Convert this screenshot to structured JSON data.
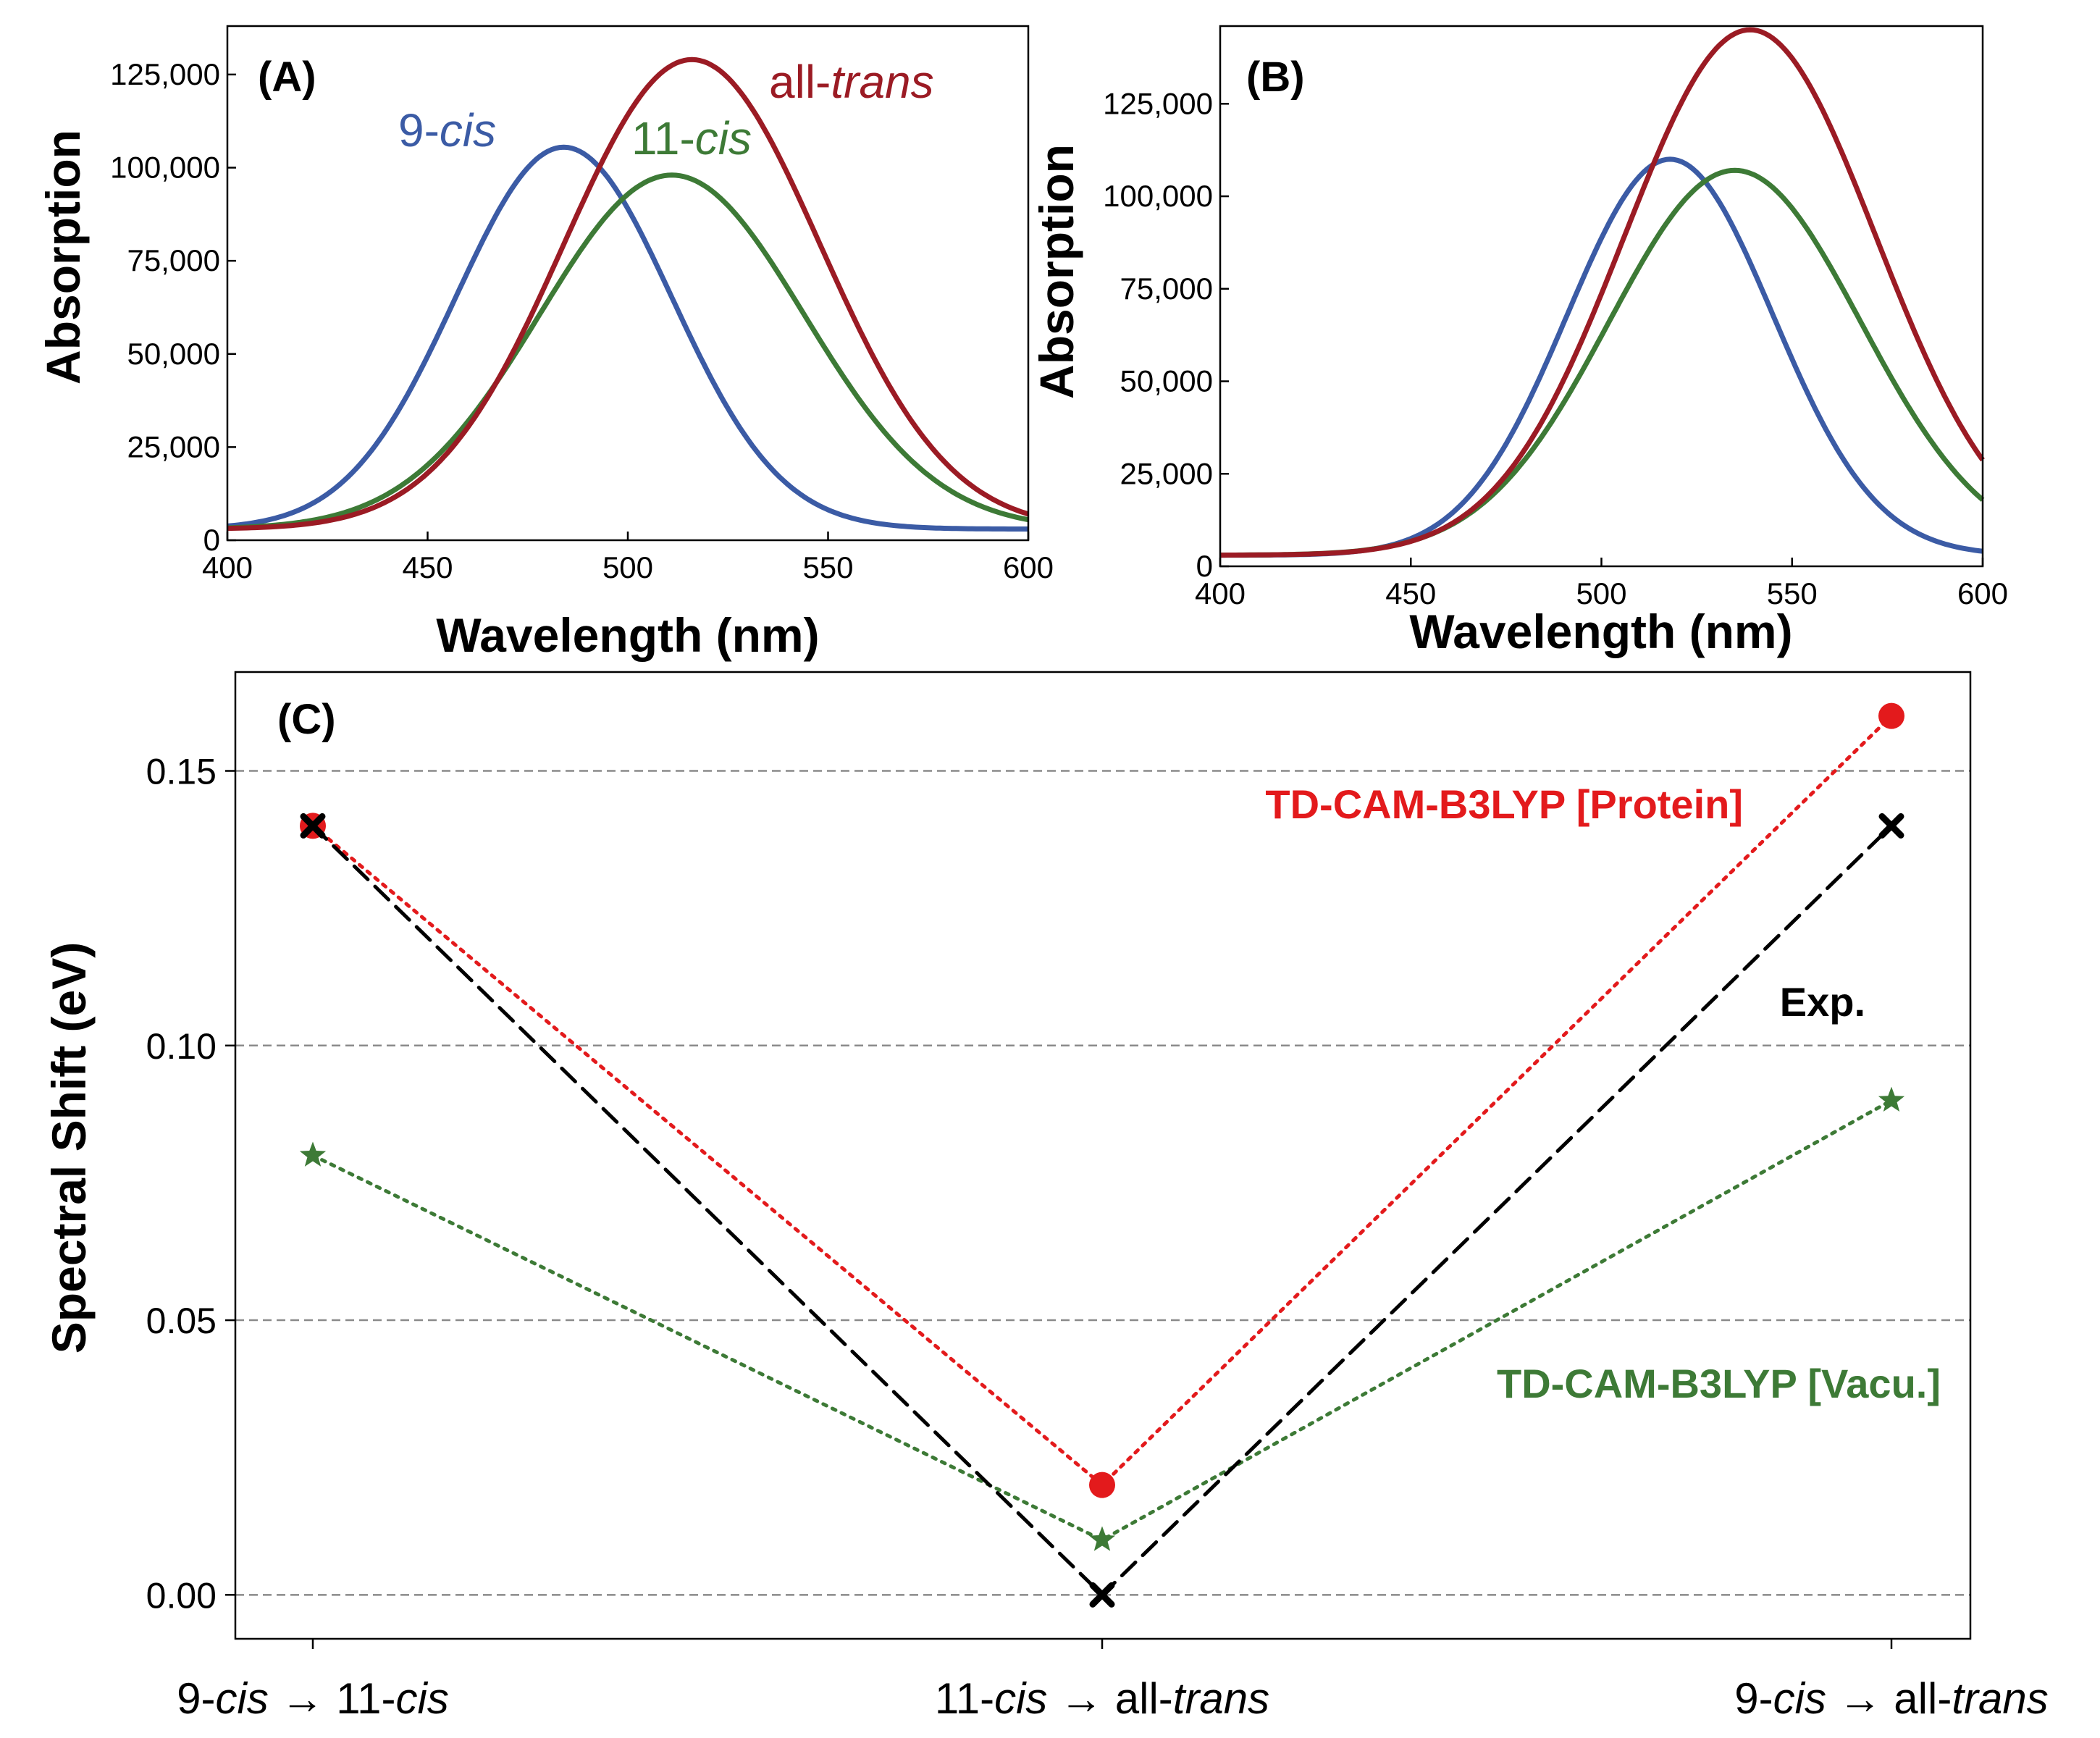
{
  "chart_data": [
    {
      "type": "line",
      "panel": "(A)",
      "xlabel": "Wavelength (nm)",
      "ylabel": "Absorption",
      "xlim": [
        400,
        600
      ],
      "ylim": [
        0,
        138000
      ],
      "xticks": [
        400,
        450,
        500,
        550,
        600
      ],
      "xtick_labels": [
        "400",
        "450",
        "500",
        "550",
        "600"
      ],
      "yticks": [
        0,
        25000,
        50000,
        75000,
        100000,
        125000
      ],
      "ytick_labels": [
        "0",
        "25,000",
        "50,000",
        "75,000",
        "100,000",
        "125,000"
      ],
      "series": [
        {
          "name": "9-cis",
          "label_pre": "9-",
          "label_em": "cis",
          "label_post": "",
          "color": "#3b5ba5",
          "peak_nm": 484,
          "peak_value": 105500,
          "sigma_nm": 27,
          "baseline": 3000
        },
        {
          "name": "11-cis",
          "label_pre": "11-",
          "label_em": "cis",
          "label_post": "",
          "color": "#3d7a36",
          "peak_nm": 511,
          "peak_value": 98000,
          "sigma_nm": 33,
          "baseline": 3000
        },
        {
          "name": "all-trans",
          "label_pre": "all-",
          "label_em": "trans",
          "label_post": "",
          "color": "#9b1b24",
          "peak_nm": 516,
          "peak_value": 129000,
          "sigma_nm": 32,
          "baseline": 3000
        }
      ]
    },
    {
      "type": "line",
      "panel": "(B)",
      "xlabel": "Wavelength (nm)",
      "ylabel": "Absorption",
      "xlim": [
        400,
        600
      ],
      "ylim": [
        0,
        146000
      ],
      "xticks": [
        400,
        450,
        500,
        550,
        600
      ],
      "xtick_labels": [
        "400",
        "450",
        "500",
        "550",
        "600"
      ],
      "yticks": [
        0,
        25000,
        50000,
        75000,
        100000,
        125000
      ],
      "ytick_labels": [
        "0",
        "25,000",
        "50,000",
        "75,000",
        "100,000",
        "125,000"
      ],
      "series": [
        {
          "name": "9-cis",
          "color": "#3b5ba5",
          "peak_nm": 518,
          "peak_value": 110000,
          "sigma_nm": 27,
          "baseline": 3000
        },
        {
          "name": "11-cis",
          "color": "#3d7a36",
          "peak_nm": 535,
          "peak_value": 107000,
          "sigma_nm": 33,
          "baseline": 3000
        },
        {
          "name": "all-trans",
          "color": "#9b1b24",
          "peak_nm": 539,
          "peak_value": 145000,
          "sigma_nm": 33,
          "baseline": 3000
        }
      ]
    },
    {
      "type": "line",
      "panel": "(C)",
      "xlabel": "",
      "ylabel": "Spectral Shift (eV)",
      "ylim": [
        -0.008,
        0.168
      ],
      "yticks": [
        0.0,
        0.05,
        0.1,
        0.15
      ],
      "ytick_labels": [
        "0.00",
        "0.05",
        "0.10",
        "0.15"
      ],
      "grid": "horizontal dashed",
      "categories": [
        {
          "pre": "9-",
          "em": "cis",
          "mid": " → 11-",
          "em2": "cis"
        },
        {
          "pre": "11-",
          "em": "cis",
          "mid": " → all-",
          "em2": "trans"
        },
        {
          "pre": "9-",
          "em": "cis",
          "mid": " → all-",
          "em2": "trans"
        }
      ],
      "category_names": [
        "9-cis → 11-cis",
        "11-cis → all-trans",
        "9-cis → all-trans"
      ],
      "series": [
        {
          "name": "TD-CAM-B3LYP [Protein]",
          "color": "#e31a1c",
          "marker": "circle",
          "line": "dotted",
          "values": [
            0.14,
            0.02,
            0.16
          ]
        },
        {
          "name": "Exp.",
          "color": "#000000",
          "marker": "x",
          "line": "dashed",
          "values": [
            0.14,
            0.0,
            0.14
          ]
        },
        {
          "name": "TD-CAM-B3LYP [Vacu.]",
          "color": "#3d7a36",
          "marker": "star",
          "line": "dotted",
          "values": [
            0.08,
            0.01,
            0.09
          ]
        }
      ]
    }
  ]
}
